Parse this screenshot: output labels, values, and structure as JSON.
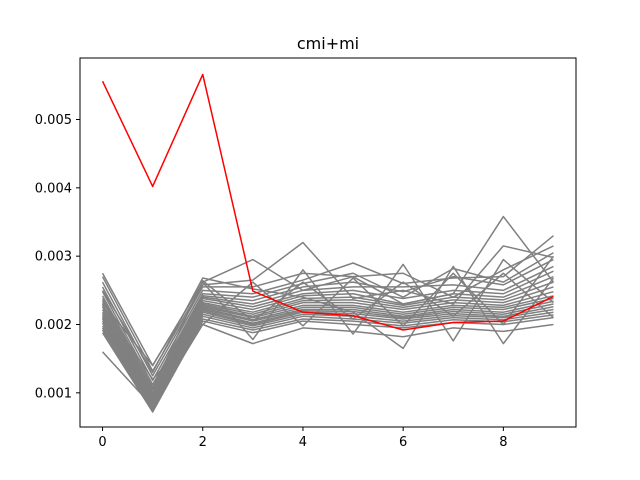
{
  "chart_data": {
    "type": "line",
    "title": "cmi+mi",
    "xlabel": "",
    "ylabel": "",
    "xlim": [
      -0.45,
      9.45
    ],
    "ylim": [
      0.0005,
      0.0059
    ],
    "xticks": [
      0,
      2,
      4,
      6,
      8
    ],
    "xtick_labels": [
      "0",
      "2",
      "4",
      "6",
      "8"
    ],
    "yticks": [
      0.001,
      0.002,
      0.003,
      0.004,
      0.005
    ],
    "ytick_labels": [
      "0.001",
      "0.002",
      "0.003",
      "0.004",
      "0.005"
    ],
    "grid": false,
    "legend": false,
    "x": [
      0,
      1,
      2,
      3,
      4,
      5,
      6,
      7,
      8,
      9
    ],
    "highlight_color": "#ff0000",
    "background_color": "#808080",
    "highlight_series": {
      "values": [
        0.00556,
        0.00402,
        0.00566,
        0.00249,
        0.00218,
        0.00213,
        0.00192,
        0.00203,
        0.00205,
        0.00241
      ]
    },
    "background_series": [
      {
        "values": [
          0.00275,
          0.0014,
          0.00262,
          0.00295,
          0.0025,
          0.0027,
          0.0023,
          0.00245,
          0.00358,
          0.00262
        ]
      },
      {
        "values": [
          0.0027,
          0.00132,
          0.00258,
          0.00265,
          0.0032,
          0.00238,
          0.0025,
          0.0023,
          0.00315,
          0.00298
        ]
      },
      {
        "values": [
          0.00262,
          0.00125,
          0.00255,
          0.00255,
          0.00275,
          0.0027,
          0.00275,
          0.0024,
          0.0028,
          0.00315
        ]
      },
      {
        "values": [
          0.00255,
          0.00118,
          0.0025,
          0.00245,
          0.00265,
          0.0029,
          0.0026,
          0.00268,
          0.0027,
          0.0033
        ]
      },
      {
        "values": [
          0.00248,
          0.00112,
          0.00245,
          0.0024,
          0.0026,
          0.00275,
          0.0024,
          0.00282,
          0.00262,
          0.00305
        ]
      },
      {
        "values": [
          0.00242,
          0.00108,
          0.00242,
          0.00235,
          0.00255,
          0.00262,
          0.00248,
          0.0027,
          0.00258,
          0.00295
        ]
      },
      {
        "values": [
          0.00238,
          0.00104,
          0.0024,
          0.0023,
          0.0025,
          0.00255,
          0.00255,
          0.00258,
          0.0025,
          0.00285
        ]
      },
      {
        "values": [
          0.00235,
          0.001,
          0.00238,
          0.00226,
          0.00245,
          0.0025,
          0.00238,
          0.0025,
          0.00245,
          0.00278
        ]
      },
      {
        "values": [
          0.0023,
          0.00098,
          0.00235,
          0.00222,
          0.00242,
          0.00245,
          0.0023,
          0.00245,
          0.0024,
          0.0027
        ]
      },
      {
        "values": [
          0.00226,
          0.00095,
          0.00232,
          0.00218,
          0.00238,
          0.0024,
          0.00228,
          0.0024,
          0.00236,
          0.00262
        ]
      },
      {
        "values": [
          0.00222,
          0.00092,
          0.0023,
          0.00215,
          0.00235,
          0.00236,
          0.00225,
          0.00236,
          0.00232,
          0.00255
        ]
      },
      {
        "values": [
          0.00218,
          0.0009,
          0.00228,
          0.00212,
          0.00232,
          0.00232,
          0.00222,
          0.00232,
          0.00228,
          0.00248
        ]
      },
      {
        "values": [
          0.00215,
          0.00088,
          0.00226,
          0.0021,
          0.00228,
          0.00228,
          0.00218,
          0.00228,
          0.00225,
          0.00242
        ]
      },
      {
        "values": [
          0.00212,
          0.00086,
          0.00224,
          0.00207,
          0.00225,
          0.00225,
          0.00215,
          0.00225,
          0.00222,
          0.00238
        ]
      },
      {
        "values": [
          0.00208,
          0.00084,
          0.00222,
          0.00205,
          0.00222,
          0.00222,
          0.00212,
          0.00222,
          0.00218,
          0.00234
        ]
      },
      {
        "values": [
          0.00205,
          0.00082,
          0.0022,
          0.00202,
          0.0022,
          0.00219,
          0.0021,
          0.00219,
          0.00215,
          0.0023
        ]
      },
      {
        "values": [
          0.00202,
          0.0008,
          0.00218,
          0.002,
          0.00218,
          0.00216,
          0.00208,
          0.00216,
          0.00212,
          0.00226
        ]
      },
      {
        "values": [
          0.00198,
          0.00078,
          0.00215,
          0.00198,
          0.00215,
          0.00212,
          0.00205,
          0.00213,
          0.0021,
          0.00222
        ]
      },
      {
        "values": [
          0.00195,
          0.00076,
          0.00212,
          0.00195,
          0.00212,
          0.00208,
          0.00202,
          0.0021,
          0.00207,
          0.00218
        ]
      },
      {
        "values": [
          0.00192,
          0.00074,
          0.00208,
          0.00192,
          0.00208,
          0.00205,
          0.00198,
          0.00207,
          0.00204,
          0.00214
        ]
      },
      {
        "values": [
          0.00188,
          0.00072,
          0.00205,
          0.00188,
          0.00205,
          0.002,
          0.00195,
          0.00203,
          0.002,
          0.0021
        ]
      },
      {
        "values": [
          0.0016,
          0.0008,
          0.002,
          0.00172,
          0.00195,
          0.0019,
          0.00182,
          0.00195,
          0.0019,
          0.002
        ]
      },
      {
        "values": [
          0.0025,
          0.0013,
          0.00268,
          0.00252,
          0.0024,
          0.00218,
          0.00165,
          0.00285,
          0.00172,
          0.00268
        ]
      },
      {
        "values": [
          0.00232,
          0.0014,
          0.00262,
          0.00178,
          0.0028,
          0.00186,
          0.00288,
          0.00176,
          0.00295,
          0.00232
        ]
      },
      {
        "values": [
          0.00228,
          0.0012,
          0.002,
          0.00262,
          0.00198,
          0.00268,
          0.00198,
          0.00275,
          0.002,
          0.003
        ]
      },
      {
        "values": [
          0.0021,
          0.00105,
          0.00264,
          0.00205,
          0.00262,
          0.00208,
          0.00262,
          0.00212,
          0.00275,
          0.0021
        ]
      }
    ]
  }
}
